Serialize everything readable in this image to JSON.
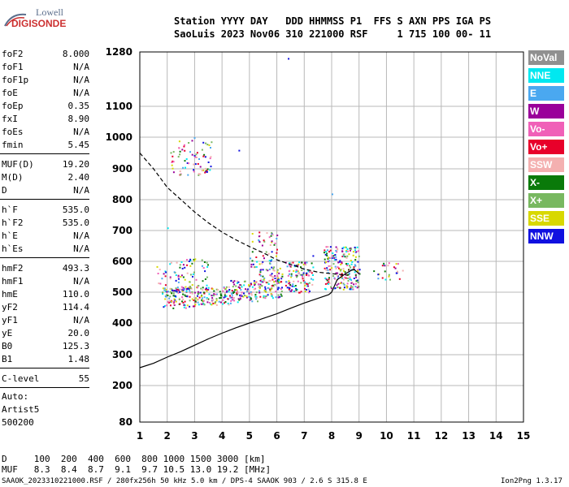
{
  "logo": {
    "line1": "Lowell",
    "line2": "DIGISONDE"
  },
  "header": {
    "line1": "Station YYYY DAY   DDD HHMMSS P1  FFS S AXN PPS IGA PS",
    "line2": "SaoLuis 2023 Nov06 310 221000 RSF     1 715 100 00- 11"
  },
  "params": [
    {
      "name": "foF2",
      "value": "8.000"
    },
    {
      "name": "foF1",
      "value": "N/A"
    },
    {
      "name": "foF1p",
      "value": "N/A"
    },
    {
      "name": "foE",
      "value": "N/A"
    },
    {
      "name": "foEp",
      "value": "0.35"
    },
    {
      "name": "fxI",
      "value": "8.90"
    },
    {
      "name": "foEs",
      "value": "N/A"
    },
    {
      "name": "fmin",
      "value": "5.45"
    },
    {
      "name": "MUF(D)",
      "value": "19.20"
    },
    {
      "name": "M(D)",
      "value": "2.40"
    },
    {
      "name": "D",
      "value": "N/A"
    },
    {
      "name": "h`F",
      "value": "535.0"
    },
    {
      "name": "h`F2",
      "value": "535.0"
    },
    {
      "name": "h`E",
      "value": "N/A"
    },
    {
      "name": "h`Es",
      "value": "N/A"
    },
    {
      "name": "hmF2",
      "value": "493.3"
    },
    {
      "name": "hmF1",
      "value": "N/A"
    },
    {
      "name": "hmE",
      "value": "110.0"
    },
    {
      "name": "yF2",
      "value": "114.4"
    },
    {
      "name": "yF1",
      "value": "N/A"
    },
    {
      "name": "yE",
      "value": "20.0"
    },
    {
      "name": "B0",
      "value": "125.3"
    },
    {
      "name": "B1",
      "value": "1.48"
    },
    {
      "name": "C-level",
      "value": "55"
    }
  ],
  "extra": [
    "Auto:",
    "Artist5",
    "500200"
  ],
  "legend": [
    {
      "label": "NoVal",
      "color": "#909090",
      "text": "#ffffff"
    },
    {
      "label": "NNE",
      "color": "#00e8f0",
      "text": "#ffffff"
    },
    {
      "label": "E",
      "color": "#4aa8f0",
      "text": "#ffffff"
    },
    {
      "label": "W",
      "color": "#9a009a",
      "text": "#ffffff"
    },
    {
      "label": "Vo-",
      "color": "#f060b8",
      "text": "#ffffff"
    },
    {
      "label": "Vo+",
      "color": "#e8002a",
      "text": "#ffffff"
    },
    {
      "label": "SSW",
      "color": "#f4b0b0",
      "text": "#ffffff"
    },
    {
      "label": "X-",
      "color": "#0a7a0a",
      "text": "#ffffff"
    },
    {
      "label": "X+",
      "color": "#78b860",
      "text": "#ffffff"
    },
    {
      "label": "SSE",
      "color": "#d8d800",
      "text": "#ffffff"
    },
    {
      "label": "NNW",
      "color": "#1010e0",
      "text": "#ffffff"
    }
  ],
  "footer": {
    "d_line": "D     100  200  400  600  800 1000 1500 3000 [km]",
    "muf_line": "MUF   8.3  8.4  8.7  9.1  9.7 10.5 13.0 19.2 [MHz]",
    "info": "SAAOK_2023310221000.RSF / 280fx256h 50 kHz 5.0 km / DPS-4 SAAOK 903 / 2.6 S 315.8 E",
    "version": "Ion2Png 1.3.17"
  },
  "chart_data": {
    "type": "scatter",
    "xlim": [
      1,
      15
    ],
    "ylim": [
      80,
      1280
    ],
    "x_ticks": [
      1,
      2,
      3,
      4,
      5,
      6,
      7,
      8,
      9,
      10,
      11,
      12,
      13,
      14,
      15
    ],
    "y_ticks": [
      80,
      200,
      300,
      400,
      500,
      600,
      700,
      800,
      900,
      1000,
      1100,
      1280
    ],
    "grid": true,
    "clusters": [
      {
        "x": [
          1.8,
          2.3
        ],
        "y": [
          450,
          520
        ],
        "density": 1.0
      },
      {
        "x": [
          2.3,
          3.3
        ],
        "y": [
          450,
          520
        ],
        "density": 1.0
      },
      {
        "x": [
          3.3,
          4.3
        ],
        "y": [
          460,
          520
        ],
        "density": 1.0
      },
      {
        "x": [
          4.3,
          5.3
        ],
        "y": [
          470,
          540
        ],
        "density": 1.0
      },
      {
        "x": [
          5.3,
          6.2
        ],
        "y": [
          480,
          580
        ],
        "density": 1.0
      },
      {
        "x": [
          6.3,
          7.3
        ],
        "y": [
          500,
          600
        ],
        "density": 0.9
      },
      {
        "x": [
          7.7,
          9.0
        ],
        "y": [
          510,
          650
        ],
        "density": 0.9
      },
      {
        "x": [
          5.0,
          6.0
        ],
        "y": [
          580,
          700
        ],
        "density": 0.35
      },
      {
        "x": [
          2.0,
          3.6
        ],
        "y": [
          880,
          1000
        ],
        "density": 0.3
      },
      {
        "x": [
          1.6,
          3.5
        ],
        "y": [
          500,
          610
        ],
        "density": 0.35
      },
      {
        "x": [
          9.5,
          10.6
        ],
        "y": [
          540,
          600
        ],
        "density": 0.3
      }
    ],
    "dashed_trace": [
      [
        1.0,
        950
      ],
      [
        1.5,
        900
      ],
      [
        2.0,
        840
      ],
      [
        2.5,
        800
      ],
      [
        3.0,
        760
      ],
      [
        3.5,
        725
      ],
      [
        4.0,
        695
      ],
      [
        4.5,
        670
      ],
      [
        5.0,
        648
      ],
      [
        5.5,
        628
      ],
      [
        6.0,
        605
      ],
      [
        6.5,
        590
      ],
      [
        7.0,
        575
      ],
      [
        7.5,
        565
      ],
      [
        8.0,
        560
      ],
      [
        8.6,
        555
      ]
    ],
    "solid_trace": [
      [
        1.0,
        258
      ],
      [
        1.5,
        272
      ],
      [
        2.0,
        292
      ],
      [
        2.5,
        310
      ],
      [
        3.0,
        330
      ],
      [
        3.5,
        350
      ],
      [
        4.0,
        368
      ],
      [
        4.5,
        385
      ],
      [
        5.0,
        400
      ],
      [
        5.5,
        415
      ],
      [
        6.0,
        430
      ],
      [
        6.5,
        448
      ],
      [
        7.0,
        465
      ],
      [
        7.5,
        480
      ],
      [
        7.9,
        492
      ],
      [
        8.0,
        500
      ],
      [
        8.2,
        540
      ],
      [
        8.5,
        560
      ],
      [
        8.8,
        575
      ],
      [
        9.0,
        560
      ]
    ],
    "scatter_colors": [
      "#1010e0",
      "#9a009a",
      "#f060b8",
      "#e8002a",
      "#0a7a0a",
      "#78b860",
      "#d8d800",
      "#00e8f0",
      "#4aa8f0",
      "#f4b0b0"
    ]
  }
}
